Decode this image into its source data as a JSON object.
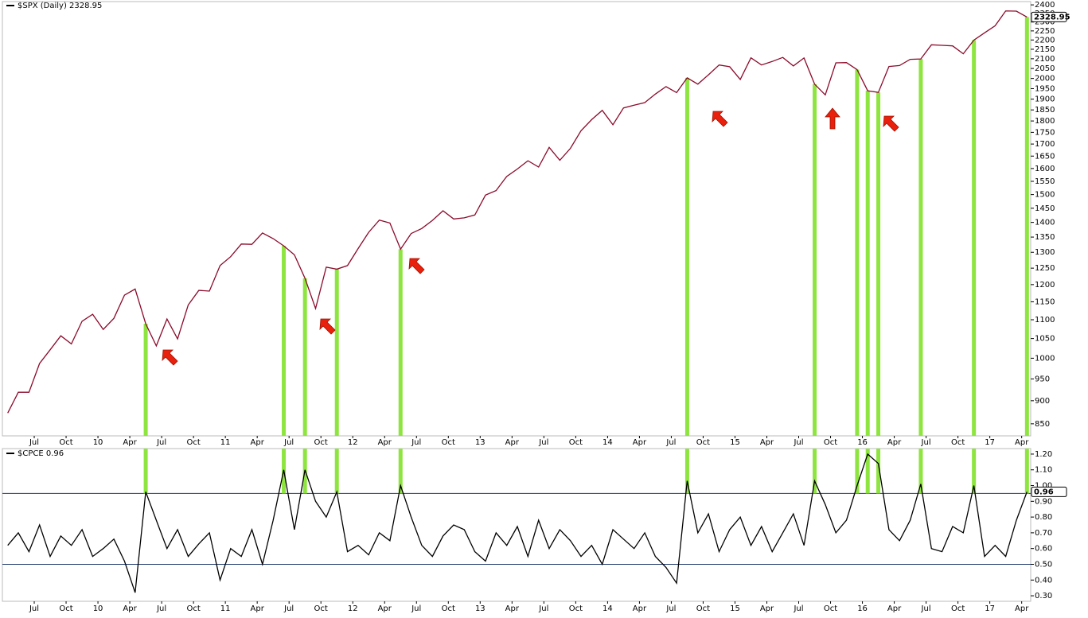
{
  "chart_data": [
    {
      "type": "line",
      "title": "$SPX (Daily) 2328.95",
      "color": "#8b0a2a",
      "log_scale": true,
      "x": [
        "2009-04",
        "2009-05",
        "2009-06",
        "2009-07",
        "2009-08",
        "2009-09",
        "2009-10",
        "2009-11",
        "2009-12",
        "2010-01",
        "2010-02",
        "2010-03",
        "2010-04",
        "2010-05",
        "2010-06",
        "2010-07",
        "2010-08",
        "2010-09",
        "2010-10",
        "2010-11",
        "2010-12",
        "2011-01",
        "2011-02",
        "2011-03",
        "2011-04",
        "2011-05",
        "2011-06",
        "2011-07",
        "2011-08",
        "2011-09",
        "2011-10",
        "2011-11",
        "2011-12",
        "2012-01",
        "2012-02",
        "2012-03",
        "2012-04",
        "2012-05",
        "2012-06",
        "2012-07",
        "2012-08",
        "2012-09",
        "2012-10",
        "2012-11",
        "2012-12",
        "2013-01",
        "2013-02",
        "2013-03",
        "2013-04",
        "2013-05",
        "2013-06",
        "2013-07",
        "2013-08",
        "2013-09",
        "2013-10",
        "2013-11",
        "2013-12",
        "2014-01",
        "2014-02",
        "2014-03",
        "2014-04",
        "2014-05",
        "2014-06",
        "2014-07",
        "2014-08",
        "2014-09",
        "2014-10",
        "2014-11",
        "2014-12",
        "2015-01",
        "2015-02",
        "2015-03",
        "2015-04",
        "2015-05",
        "2015-06",
        "2015-07",
        "2015-08",
        "2015-09",
        "2015-10",
        "2015-11",
        "2015-12",
        "2016-01",
        "2016-02",
        "2016-03",
        "2016-04",
        "2016-05",
        "2016-06",
        "2016-07",
        "2016-08",
        "2016-09",
        "2016-10",
        "2016-11",
        "2016-12",
        "2017-01",
        "2017-02",
        "2017-03",
        "2017-04"
      ],
      "values": [
        873,
        919,
        919,
        987,
        1021,
        1057,
        1036,
        1096,
        1115,
        1074,
        1104,
        1169,
        1187,
        1089,
        1031,
        1102,
        1049,
        1141,
        1183,
        1181,
        1258,
        1286,
        1327,
        1326,
        1364,
        1345,
        1321,
        1292,
        1219,
        1131,
        1253,
        1247,
        1258,
        1312,
        1366,
        1408,
        1398,
        1310,
        1362,
        1379,
        1407,
        1441,
        1412,
        1416,
        1426,
        1498,
        1515,
        1569,
        1598,
        1631,
        1606,
        1686,
        1633,
        1682,
        1757,
        1806,
        1848,
        1783,
        1859,
        1872,
        1884,
        1924,
        1960,
        1931,
        2003,
        1972,
        2018,
        2068,
        2059,
        1995,
        2105,
        2068,
        2086,
        2107,
        2063,
        2104,
        1972,
        1920,
        2079,
        2080,
        2044,
        1940,
        1932,
        2060,
        2065,
        2097,
        2099,
        2174,
        2171,
        2168,
        2126,
        2199,
        2239,
        2279,
        2364,
        2363,
        2328.95
      ],
      "xlim": [
        "2009-04",
        "2017-05"
      ],
      "xticks": [
        {
          "value": "2009-07",
          "label": "Jul"
        },
        {
          "value": "2009-10",
          "label": "Oct"
        },
        {
          "value": "2010-01",
          "label": "10"
        },
        {
          "value": "2010-04",
          "label": "Apr"
        },
        {
          "value": "2010-07",
          "label": "Jul"
        },
        {
          "value": "2010-10",
          "label": "Oct"
        },
        {
          "value": "2011-01",
          "label": "11"
        },
        {
          "value": "2011-04",
          "label": "Apr"
        },
        {
          "value": "2011-07",
          "label": "Jul"
        },
        {
          "value": "2011-10",
          "label": "Oct"
        },
        {
          "value": "2012-01",
          "label": "12"
        },
        {
          "value": "2012-04",
          "label": "Apr"
        },
        {
          "value": "2012-07",
          "label": "Jul"
        },
        {
          "value": "2012-10",
          "label": "Oct"
        },
        {
          "value": "2013-01",
          "label": "13"
        },
        {
          "value": "2013-04",
          "label": "Apr"
        },
        {
          "value": "2013-07",
          "label": "Jul"
        },
        {
          "value": "2013-10",
          "label": "Oct"
        },
        {
          "value": "2014-01",
          "label": "14"
        },
        {
          "value": "2014-04",
          "label": "Apr"
        },
        {
          "value": "2014-07",
          "label": "Jul"
        },
        {
          "value": "2014-10",
          "label": "Oct"
        },
        {
          "value": "2015-01",
          "label": "15"
        },
        {
          "value": "2015-04",
          "label": "Apr"
        },
        {
          "value": "2015-07",
          "label": "Jul"
        },
        {
          "value": "2015-10",
          "label": "Oct"
        },
        {
          "value": "2016-01",
          "label": "16"
        },
        {
          "value": "2016-04",
          "label": "Apr"
        },
        {
          "value": "2016-07",
          "label": "Jul"
        },
        {
          "value": "2016-10",
          "label": "Oct"
        },
        {
          "value": "2017-01",
          "label": "17"
        },
        {
          "value": "2017-04",
          "label": "Apr"
        }
      ],
      "ylim": [
        825,
        2410
      ],
      "yticks": [
        850,
        900,
        950,
        1000,
        1050,
        1100,
        1150,
        1200,
        1250,
        1300,
        1350,
        1400,
        1450,
        1500,
        1550,
        1600,
        1650,
        1700,
        1750,
        1800,
        1850,
        1900,
        1950,
        2000,
        2050,
        2100,
        2150,
        2200,
        2250,
        2300,
        2350,
        2400
      ]
    },
    {
      "type": "line",
      "title": "$CPCE 0.96",
      "color": "#000000",
      "hlines": [
        0.95,
        0.5
      ],
      "hline_color": "#1f3a6e",
      "highlight_color": "#8ee53f",
      "x": [
        "2009-04",
        "2009-05",
        "2009-06",
        "2009-07",
        "2009-08",
        "2009-09",
        "2009-10",
        "2009-11",
        "2009-12",
        "2010-01",
        "2010-02",
        "2010-03",
        "2010-04",
        "2010-05",
        "2010-06",
        "2010-07",
        "2010-08",
        "2010-09",
        "2010-10",
        "2010-11",
        "2010-12",
        "2011-01",
        "2011-02",
        "2011-03",
        "2011-04",
        "2011-05",
        "2011-06",
        "2011-07",
        "2011-08",
        "2011-09",
        "2011-10",
        "2011-11",
        "2011-12",
        "2012-01",
        "2012-02",
        "2012-03",
        "2012-04",
        "2012-05",
        "2012-06",
        "2012-07",
        "2012-08",
        "2012-09",
        "2012-10",
        "2012-11",
        "2012-12",
        "2013-01",
        "2013-02",
        "2013-03",
        "2013-04",
        "2013-05",
        "2013-06",
        "2013-07",
        "2013-08",
        "2013-09",
        "2013-10",
        "2013-11",
        "2013-12",
        "2014-01",
        "2014-02",
        "2014-03",
        "2014-04",
        "2014-05",
        "2014-06",
        "2014-07",
        "2014-08",
        "2014-09",
        "2014-10",
        "2014-11",
        "2014-12",
        "2015-01",
        "2015-02",
        "2015-03",
        "2015-04",
        "2015-05",
        "2015-06",
        "2015-07",
        "2015-08",
        "2015-09",
        "2015-10",
        "2015-11",
        "2015-12",
        "2016-01",
        "2016-02",
        "2016-03",
        "2016-04",
        "2016-05",
        "2016-06",
        "2016-07",
        "2016-08",
        "2016-09",
        "2016-10",
        "2016-11",
        "2016-12",
        "2017-01",
        "2017-02",
        "2017-03",
        "2017-04"
      ],
      "values": [
        0.62,
        0.7,
        0.58,
        0.75,
        0.55,
        0.68,
        0.62,
        0.72,
        0.55,
        0.6,
        0.66,
        0.52,
        0.32,
        0.96,
        0.78,
        0.6,
        0.72,
        0.55,
        0.63,
        0.7,
        0.4,
        0.6,
        0.55,
        0.72,
        0.5,
        0.78,
        1.1,
        0.72,
        1.1,
        0.9,
        0.8,
        0.96,
        0.58,
        0.62,
        0.56,
        0.7,
        0.65,
        1.0,
        0.8,
        0.62,
        0.55,
        0.68,
        0.75,
        0.72,
        0.58,
        0.52,
        0.7,
        0.62,
        0.74,
        0.55,
        0.78,
        0.6,
        0.72,
        0.65,
        0.55,
        0.62,
        0.5,
        0.72,
        0.66,
        0.6,
        0.7,
        0.55,
        0.48,
        0.38,
        1.03,
        0.7,
        0.82,
        0.58,
        0.72,
        0.8,
        0.62,
        0.74,
        0.58,
        0.7,
        0.82,
        0.62,
        1.03,
        0.88,
        0.7,
        0.78,
        1.0,
        1.2,
        1.14,
        0.72,
        0.65,
        0.78,
        1.01,
        0.6,
        0.58,
        0.74,
        0.7,
        1.0,
        0.55,
        0.62,
        0.55,
        0.78,
        0.96
      ],
      "xlim": [
        "2009-04",
        "2017-05"
      ],
      "xticks": [
        {
          "value": "2009-07",
          "label": "Jul"
        },
        {
          "value": "2009-10",
          "label": "Oct"
        },
        {
          "value": "2010-01",
          "label": "10"
        },
        {
          "value": "2010-04",
          "label": "Apr"
        },
        {
          "value": "2010-07",
          "label": "Jul"
        },
        {
          "value": "2010-10",
          "label": "Oct"
        },
        {
          "value": "2011-01",
          "label": "11"
        },
        {
          "value": "2011-04",
          "label": "Apr"
        },
        {
          "value": "2011-07",
          "label": "Jul"
        },
        {
          "value": "2011-10",
          "label": "Oct"
        },
        {
          "value": "2012-01",
          "label": "12"
        },
        {
          "value": "2012-04",
          "label": "Apr"
        },
        {
          "value": "2012-07",
          "label": "Jul"
        },
        {
          "value": "2012-10",
          "label": "Oct"
        },
        {
          "value": "2013-01",
          "label": "13"
        },
        {
          "value": "2013-04",
          "label": "Apr"
        },
        {
          "value": "2013-07",
          "label": "Jul"
        },
        {
          "value": "2013-10",
          "label": "Oct"
        },
        {
          "value": "2014-01",
          "label": "14"
        },
        {
          "value": "2014-04",
          "label": "Apr"
        },
        {
          "value": "2014-07",
          "label": "Jul"
        },
        {
          "value": "2014-10",
          "label": "Oct"
        },
        {
          "value": "2015-01",
          "label": "15"
        },
        {
          "value": "2015-04",
          "label": "Apr"
        },
        {
          "value": "2015-07",
          "label": "Jul"
        },
        {
          "value": "2015-10",
          "label": "Oct"
        },
        {
          "value": "2016-01",
          "label": "16"
        },
        {
          "value": "2016-04",
          "label": "Apr"
        },
        {
          "value": "2016-07",
          "label": "Jul"
        },
        {
          "value": "2016-10",
          "label": "Oct"
        },
        {
          "value": "2017-01",
          "label": "17"
        },
        {
          "value": "2017-04",
          "label": "Apr"
        }
      ],
      "ylim": [
        0.265,
        1.235
      ],
      "yticks": [
        {
          "value": 0.3,
          "label": "0.30"
        },
        {
          "value": 0.4,
          "label": "0.40"
        },
        {
          "value": 0.5,
          "label": "0.50"
        },
        {
          "value": 0.6,
          "label": "0.60"
        },
        {
          "value": 0.7,
          "label": "0.70"
        },
        {
          "value": 0.8,
          "label": "0.80"
        },
        {
          "value": 0.9,
          "label": "0.90"
        },
        {
          "value": 1.0,
          "label": "1.00"
        },
        {
          "value": 1.1,
          "label": "1.10"
        },
        {
          "value": 1.2,
          "label": "1.20"
        }
      ]
    }
  ]
}
